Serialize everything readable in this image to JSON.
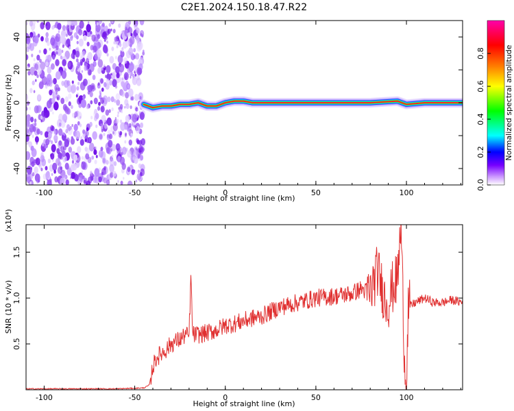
{
  "title": "C2E1.2024.150.18.47.R22",
  "chart_data": [
    {
      "type": "heatmap",
      "xlabel": "Height of straight line (km)",
      "ylabel": "Frequency (Hz)",
      "xlim": [
        -110,
        131
      ],
      "ylim": [
        -50,
        50
      ],
      "xticks": [
        -100,
        -50,
        0,
        50,
        100
      ],
      "yticks": [
        -40,
        -20,
        0,
        20,
        40
      ],
      "colorbar": {
        "label": "Normalized spectral amplitude",
        "range": [
          0,
          1
        ],
        "ticks": [
          0.0,
          0.2,
          0.4,
          0.6,
          0.8
        ],
        "colors": [
          "#ffffff",
          "#cc99ff",
          "#7700ff",
          "#0000ff",
          "#00ffff",
          "#00ff00",
          "#ffff00",
          "#ff7f00",
          "#ff0000",
          "#ff00aa"
        ]
      },
      "noise_region_x": [
        -110,
        -45
      ],
      "ridge": {
        "description_points_x": [
          -45,
          -40,
          -35,
          -30,
          -25,
          -20,
          -15,
          -10,
          -5,
          0,
          5,
          10,
          15,
          20,
          50,
          80,
          95,
          100,
          110,
          131
        ],
        "description_points_y": [
          -1,
          -3,
          -2,
          -2,
          -1,
          -1,
          0,
          -2,
          -2,
          0,
          1,
          1,
          0,
          0,
          0,
          0,
          1,
          -1,
          0,
          0
        ]
      },
      "colors": {
        "noise": "#8a3ff0",
        "ridge_core": "#ff2020",
        "ridge_halo": "#2040ff"
      }
    },
    {
      "type": "line",
      "xlabel": "Height of straight line (km)",
      "ylabel": "SNR (10 * v/v)",
      "y_multiplier": "(x10⁴)",
      "xlim": [
        -110,
        131
      ],
      "ylim": [
        0,
        1.8
      ],
      "xticks": [
        -100,
        -50,
        0,
        50,
        100
      ],
      "yticks": [
        0.5,
        1.0,
        1.5
      ],
      "series": [
        {
          "color": "#e03030",
          "x": [
            -110,
            -60,
            -45,
            -42,
            -40,
            -38,
            -35,
            -32,
            -30,
            -25,
            -22,
            -20,
            -19,
            -18,
            -15,
            -10,
            -5,
            0,
            5,
            10,
            15,
            20,
            25,
            30,
            40,
            50,
            60,
            70,
            75,
            80,
            84,
            88,
            90,
            92,
            95,
            97,
            99,
            100,
            101,
            105,
            110,
            115,
            120,
            125,
            131
          ],
          "y": [
            0.01,
            0.01,
            0.02,
            0.05,
            0.25,
            0.35,
            0.4,
            0.45,
            0.5,
            0.55,
            0.6,
            0.58,
            1.24,
            0.6,
            0.6,
            0.62,
            0.65,
            0.7,
            0.72,
            0.75,
            0.78,
            0.8,
            0.85,
            0.9,
            0.95,
            1.0,
            1.02,
            1.05,
            1.1,
            1.05,
            1.3,
            1.0,
            0.95,
            1.1,
            1.2,
            1.78,
            0.3,
            0.05,
            0.9,
            0.95,
            1.0,
            0.95,
            0.95,
            0.98,
            0.95
          ]
        }
      ]
    }
  ]
}
